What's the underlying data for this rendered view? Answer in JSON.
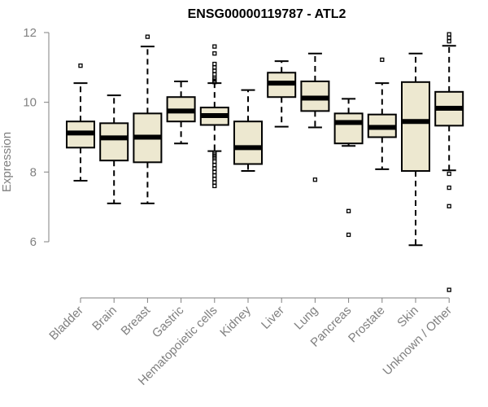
{
  "chart_data": {
    "type": "boxplot",
    "title": "ENSG00000119787 - ATL2",
    "xlabel": "",
    "ylabel": "Expression",
    "ylim": [
      4.4,
      12.2
    ],
    "yticks": [
      6,
      8,
      10,
      12
    ],
    "colors": {
      "box_fill": "#ede8d0",
      "stroke": "#000000",
      "axis": "#808080",
      "text": "#808080"
    },
    "categories": [
      "Bladder",
      "Brain",
      "Breast",
      "Gastric",
      "Hematopoietic cells",
      "Kidney",
      "Liver",
      "Lung",
      "Pancreas",
      "Prostate",
      "Skin",
      "Unknown / Other"
    ],
    "boxes": [
      {
        "name": "Bladder",
        "whisker_low": 7.75,
        "q1": 8.7,
        "median": 9.12,
        "q3": 9.45,
        "whisker_high": 10.55,
        "outliers": [
          11.05
        ]
      },
      {
        "name": "Brain",
        "whisker_low": 7.1,
        "q1": 8.33,
        "median": 8.98,
        "q3": 9.4,
        "whisker_high": 10.2,
        "outliers": []
      },
      {
        "name": "Breast",
        "whisker_low": 7.1,
        "q1": 8.28,
        "median": 9.0,
        "q3": 9.68,
        "whisker_high": 11.6,
        "outliers": [
          11.88
        ]
      },
      {
        "name": "Gastric",
        "whisker_low": 8.82,
        "q1": 9.45,
        "median": 9.75,
        "q3": 10.15,
        "whisker_high": 10.6,
        "outliers": []
      },
      {
        "name": "Hematopoietic cells",
        "whisker_low": 8.6,
        "q1": 9.35,
        "median": 9.62,
        "q3": 9.85,
        "whisker_high": 10.55,
        "outliers": [
          11.6,
          11.4,
          11.1,
          11.0,
          10.9,
          10.8,
          10.7,
          10.65,
          10.6,
          10.58,
          8.55,
          8.5,
          8.45,
          8.4,
          8.3,
          8.2,
          8.1,
          8.0,
          7.9,
          7.8,
          7.7,
          7.6
        ]
      },
      {
        "name": "Kidney",
        "whisker_low": 8.03,
        "q1": 8.23,
        "median": 8.7,
        "q3": 9.45,
        "whisker_high": 10.35,
        "outliers": []
      },
      {
        "name": "Liver",
        "whisker_low": 9.3,
        "q1": 10.15,
        "median": 10.55,
        "q3": 10.85,
        "whisker_high": 11.18,
        "outliers": []
      },
      {
        "name": "Lung",
        "whisker_low": 9.28,
        "q1": 9.75,
        "median": 10.12,
        "q3": 10.6,
        "whisker_high": 11.4,
        "outliers": [
          7.78
        ]
      },
      {
        "name": "Pancreas",
        "whisker_low": 8.75,
        "q1": 8.82,
        "median": 9.42,
        "q3": 9.68,
        "whisker_high": 10.1,
        "outliers": [
          6.88,
          6.2
        ]
      },
      {
        "name": "Prostate",
        "whisker_low": 8.08,
        "q1": 9.0,
        "median": 9.28,
        "q3": 9.65,
        "whisker_high": 10.55,
        "outliers": [
          11.22
        ]
      },
      {
        "name": "Skin",
        "whisker_low": 5.9,
        "q1": 8.03,
        "median": 9.45,
        "q3": 10.58,
        "whisker_high": 11.4,
        "outliers": []
      },
      {
        "name": "Unknown / Other",
        "whisker_low": 8.05,
        "q1": 9.33,
        "median": 9.83,
        "q3": 10.3,
        "whisker_high": 11.62,
        "outliers": [
          11.95,
          11.85,
          11.75,
          7.95,
          7.55,
          7.02,
          4.62
        ]
      }
    ]
  }
}
